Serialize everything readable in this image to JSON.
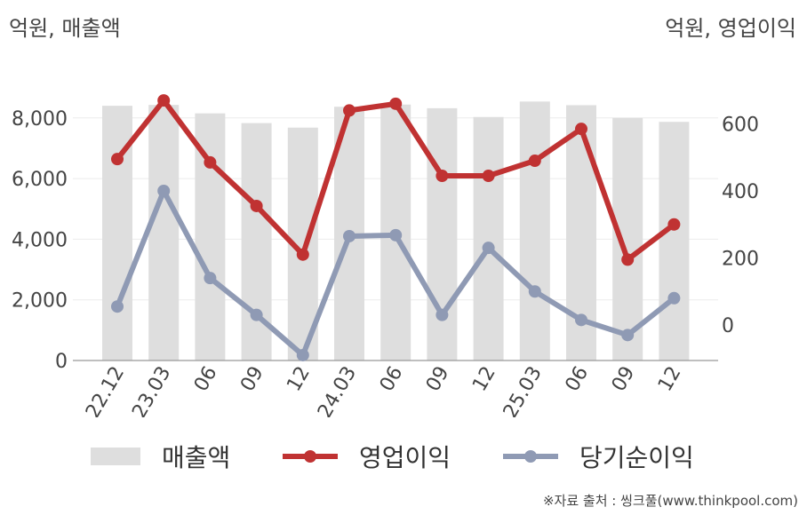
{
  "units": {
    "left": "억원, 매출액",
    "right": "억원, 영업이익"
  },
  "source": "※자료 출처 : 씽크풀(www.thinkpool.com)",
  "colors": {
    "revenue": "#dedede",
    "operating": "#c03232",
    "net": "#8f9ab4"
  },
  "chart_data": {
    "type": "bar",
    "categories": [
      "22.12",
      "23.03",
      "06",
      "09",
      "12",
      "24.03",
      "06",
      "09",
      "12",
      "25.03",
      "06",
      "09",
      "12"
    ],
    "left_axis": {
      "range": [
        0,
        8000
      ],
      "ticks": [
        "0",
        "2,000",
        "4,000",
        "6,000",
        "8,000"
      ],
      "tick_values": [
        0,
        2000,
        4000,
        6000,
        8000
      ]
    },
    "right_axis": {
      "range": [
        -110,
        650
      ],
      "ticks": [
        "0",
        "200",
        "400",
        "600"
      ],
      "tick_values": [
        0,
        200,
        400,
        600
      ]
    },
    "series": [
      {
        "name": "매출액",
        "type": "bar",
        "axis": "left",
        "values": [
          8400,
          8430,
          8150,
          7830,
          7680,
          8370,
          8440,
          8320,
          8030,
          8540,
          8420,
          8000,
          7870
        ]
      },
      {
        "name": "영업이익",
        "type": "line",
        "axis": "right",
        "values": [
          495,
          670,
          485,
          355,
          210,
          640,
          660,
          445,
          445,
          490,
          585,
          195,
          300
        ]
      },
      {
        "name": "당기순이익",
        "type": "line",
        "axis": "right",
        "values": [
          55,
          400,
          140,
          30,
          -90,
          265,
          268,
          30,
          230,
          100,
          15,
          -30,
          80
        ]
      }
    ],
    "grid": true,
    "legend": "bottom"
  }
}
